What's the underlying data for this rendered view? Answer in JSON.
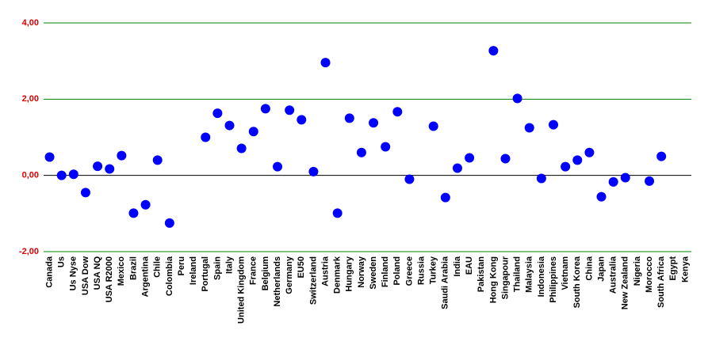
{
  "chart_data": {
    "type": "scatter",
    "categories": [
      "Canada",
      "Us",
      "Us Nyse",
      "USA Dow",
      "USA NQ",
      "USA R2000",
      "Mexico",
      "Brazil",
      "Argentina",
      "Chile",
      "Colombia",
      "Peru",
      "Ireland",
      "Portugal",
      "Spain",
      "Italy",
      "United Kingdom",
      "France",
      "Belgium",
      "Netherlands",
      "Germany",
      "EU50",
      "Switzerland",
      "Austria",
      "Denmark",
      "Hungary",
      "Norway",
      "Sweden",
      "Finland",
      "Poland",
      "Greece",
      "Russia",
      "Turkey",
      "Saudi Arabia",
      "India",
      "EAU",
      "Pakistan",
      "Hong Kong",
      "Singapour",
      "Thailand",
      "Malaysia",
      "Indonesia",
      "Philippines",
      "Vietnam",
      "South Korea",
      "China",
      "Japan",
      "Australia",
      "New Zealand",
      "Nigeria",
      "Morocco",
      "South Africa",
      "Egypt",
      "Kenya"
    ],
    "values": [
      0.48,
      0.0,
      0.03,
      -0.45,
      0.24,
      0.17,
      0.52,
      -0.99,
      -0.77,
      0.4,
      -1.25,
      null,
      null,
      1.0,
      1.63,
      1.31,
      0.71,
      1.15,
      1.75,
      0.23,
      1.71,
      1.46,
      0.1,
      2.96,
      -0.99,
      1.5,
      0.6,
      1.38,
      0.75,
      1.67,
      -0.1,
      null,
      1.29,
      -0.58,
      0.19,
      0.46,
      null,
      3.27,
      0.44,
      2.02,
      1.25,
      -0.08,
      1.33,
      0.23,
      0.4,
      0.6,
      -0.56,
      -0.17,
      -0.06,
      null,
      -0.15,
      0.5,
      null,
      null
    ],
    "color": "#0000ff",
    "ylim": [
      -2,
      4
    ],
    "yticks": [
      {
        "value": -2,
        "label": "-2,00"
      },
      {
        "value": 0,
        "label": "0,00"
      },
      {
        "value": 2,
        "label": "2,00"
      },
      {
        "value": 4,
        "label": "4,00"
      }
    ],
    "grid": true,
    "grid_color": "#008000",
    "zero_line_color": "#000000"
  }
}
